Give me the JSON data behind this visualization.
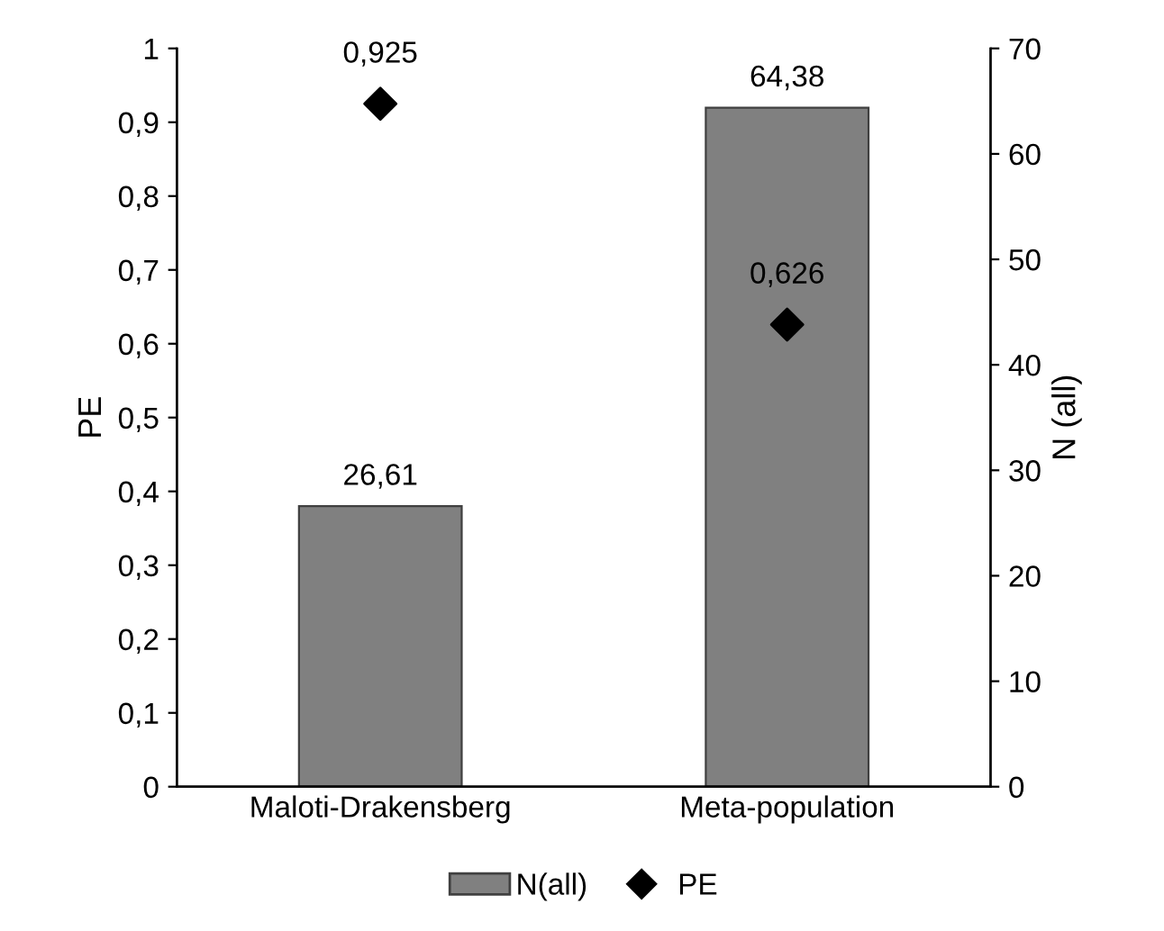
{
  "chart_data": {
    "type": "bar",
    "categories": [
      "Maloti-Drakensberg",
      "Meta-population"
    ],
    "series": [
      {
        "name": "N(all)",
        "axis": "y2",
        "color": "#808080",
        "values": [
          26.61,
          64.38
        ],
        "value_labels": [
          "26,61",
          "64,38"
        ]
      },
      {
        "name": "PE",
        "type": "scatter",
        "axis": "y",
        "color": "#000000",
        "marker": "diamond",
        "values": [
          0.925,
          0.626
        ],
        "value_labels": [
          "0,925",
          "0,626"
        ]
      }
    ],
    "ylabel": "PE",
    "y2label": "N (all)",
    "ylim": [
      0,
      1
    ],
    "yticks": [
      0,
      {
        "value": 0.1,
        "label": "0,1"
      },
      {
        "value": 0.2,
        "label": "0,2"
      },
      {
        "value": 0.3,
        "label": "0,3"
      },
      {
        "value": 0.4,
        "label": "0,4"
      },
      {
        "value": 0.5,
        "label": "0,5"
      },
      {
        "value": 0.6,
        "label": "0,6"
      },
      {
        "value": 0.7,
        "label": "0,7"
      },
      {
        "value": 0.8,
        "label": "0,8"
      },
      {
        "value": 0.9,
        "label": "0,9"
      },
      1
    ],
    "y2lim": [
      0,
      70
    ],
    "y2ticks": [
      0,
      10,
      20,
      30,
      40,
      50,
      60,
      70
    ],
    "legend": "bottom",
    "grid": false
  }
}
